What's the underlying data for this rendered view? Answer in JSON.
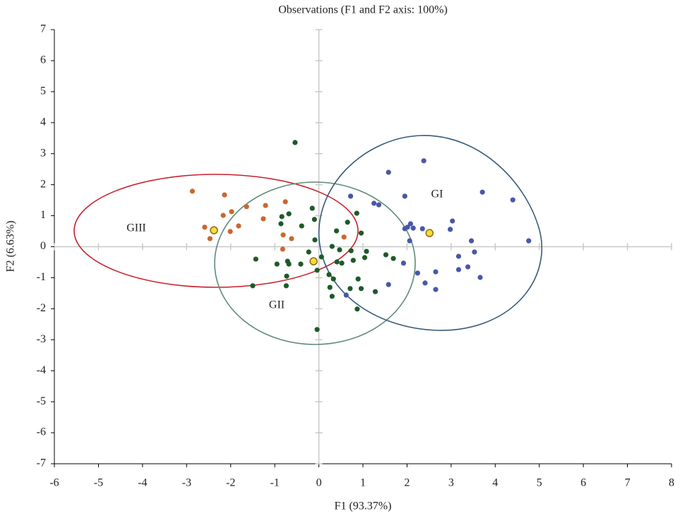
{
  "chart_data": {
    "type": "scatter",
    "title": "Observations (F1 and F2 axis: 100%)",
    "x_label": "F1 (93.37%)",
    "y_label": "F2 (6.63%)",
    "xlim": [
      -6,
      8
    ],
    "ylim": [
      -7,
      7
    ],
    "xticks": [
      -6,
      -5,
      -4,
      -3,
      -2,
      -1,
      0,
      1,
      2,
      3,
      4,
      5,
      6,
      7,
      8
    ],
    "yticks": [
      -7,
      -6,
      -5,
      -4,
      -3,
      -2,
      -1,
      0,
      1,
      2,
      3,
      4,
      5,
      6,
      7
    ],
    "zero_lines": true,
    "annotations": [
      "GI",
      "GII",
      "GIII"
    ],
    "series": [
      {
        "color": "#4858a8",
        "size": 3.6,
        "x": [
          1.58,
          2.38,
          1.95,
          0.72,
          3.71,
          4.4,
          1.25,
          1.36,
          2.08,
          2.01,
          2.14,
          1.95,
          2.35,
          3.03,
          2.98,
          2.06,
          3.46,
          4.76,
          3.53,
          3.17,
          3.38,
          1.92,
          2.24,
          2.65,
          3.17,
          3.66,
          2.41,
          1.58,
          2.65,
          0.62
        ],
        "y": [
          2.4,
          2.77,
          1.63,
          1.63,
          1.76,
          1.51,
          1.4,
          1.35,
          0.74,
          0.63,
          0.6,
          0.58,
          0.58,
          0.83,
          0.56,
          0.19,
          0.19,
          0.19,
          -0.17,
          -0.31,
          -0.65,
          -0.53,
          -0.85,
          -0.81,
          -0.74,
          -0.99,
          -1.17,
          -1.22,
          -1.38,
          -1.56
        ]
      },
      {
        "color": "#1d5a28",
        "size": 3.6,
        "x": [
          -0.54,
          -0.15,
          -0.68,
          -0.84,
          0.86,
          -0.86,
          -0.39,
          0.65,
          -0.1,
          0.4,
          0.96,
          -0.09,
          0.3,
          -1.43,
          -0.95,
          -0.71,
          -0.68,
          -0.41,
          -0.23,
          0.06,
          0.47,
          0.73,
          1.08,
          1.04,
          1.52,
          1.69,
          -0.04,
          0.41,
          0.52,
          0.78,
          0.23,
          0.33,
          0.89,
          0.25,
          0.71,
          0.96,
          1.28,
          0.3,
          -1.5,
          -0.74,
          -0.73,
          0.87,
          -0.04
        ],
        "y": [
          3.36,
          1.24,
          1.06,
          0.97,
          1.08,
          0.74,
          0.67,
          0.79,
          0.88,
          0.51,
          0.44,
          0.22,
          0.01,
          -0.4,
          -0.56,
          -0.47,
          -0.56,
          -0.56,
          -0.17,
          -0.33,
          -0.1,
          -0.13,
          -0.15,
          -0.35,
          -0.26,
          -0.38,
          -0.76,
          -0.49,
          -0.53,
          -0.44,
          -0.9,
          -1.04,
          -1.04,
          -1.31,
          -1.35,
          -1.35,
          -1.45,
          -1.6,
          -1.26,
          -1.26,
          -0.95,
          -2.01,
          -2.67
        ]
      },
      {
        "color": "#c8682e",
        "size": 3.6,
        "x": [
          -2.87,
          -2.14,
          -1.64,
          -1.21,
          -1.98,
          -2.17,
          -0.76,
          -2.59,
          -1.82,
          -1.26,
          -2.01,
          -2.47,
          -0.81,
          -0.62,
          -0.82,
          0.57
        ],
        "y": [
          1.79,
          1.67,
          1.29,
          1.33,
          1.13,
          1.01,
          1.45,
          0.63,
          0.67,
          0.9,
          0.49,
          0.26,
          0.38,
          0.26,
          -0.08,
          0.31
        ]
      },
      {
        "color": "#f5dc3c",
        "size": 5,
        "x": [
          2.51,
          -0.12,
          -2.38
        ],
        "y": [
          0.44,
          -0.47,
          0.53
        ]
      }
    ]
  }
}
